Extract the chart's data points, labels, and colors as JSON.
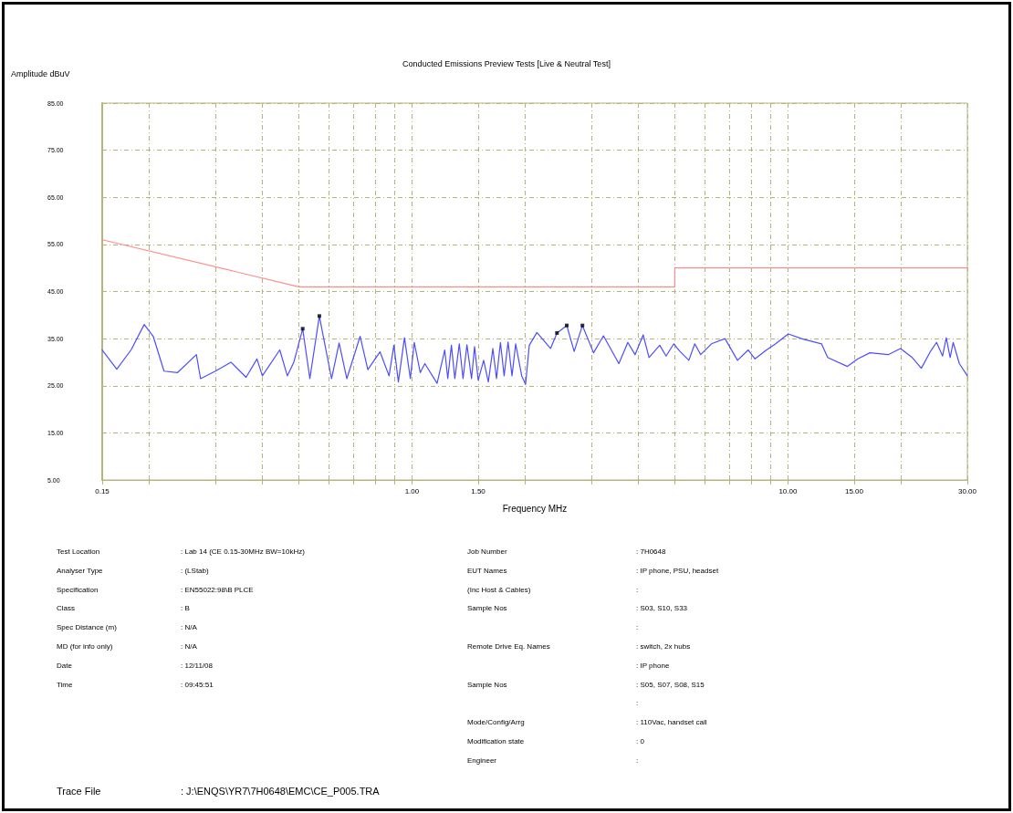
{
  "chart_data": {
    "type": "line",
    "title": "Conducted Emissions Preview Tests [Live & Neutral Test]",
    "xlabel": "Frequency MHz",
    "ylabel": "Amplitude dBuV",
    "log": "x",
    "grid": true,
    "xlim": [
      0.15,
      30
    ],
    "xticks": [
      {
        "value": 0.15,
        "label": "0.15"
      },
      {
        "value": 0.2,
        "label": null
      },
      {
        "value": 0.3,
        "label": null
      },
      {
        "value": 0.4,
        "label": null
      },
      {
        "value": 0.5,
        "label": null
      },
      {
        "value": 0.6,
        "label": null
      },
      {
        "value": 0.7,
        "label": null
      },
      {
        "value": 0.8,
        "label": null
      },
      {
        "value": 0.9,
        "label": null
      },
      {
        "value": 1,
        "label": "1.00"
      },
      {
        "value": 1.5,
        "label": "1.50"
      },
      {
        "value": 2,
        "label": null
      },
      {
        "value": 3,
        "label": null
      },
      {
        "value": 4,
        "label": null
      },
      {
        "value": 5,
        "label": null
      },
      {
        "value": 6,
        "label": null
      },
      {
        "value": 7,
        "label": null
      },
      {
        "value": 8,
        "label": null
      },
      {
        "value": 9,
        "label": null
      },
      {
        "value": 10,
        "label": "10.00"
      },
      {
        "value": 15,
        "label": "15.00"
      },
      {
        "value": 20,
        "label": null
      },
      {
        "value": 30,
        "label": "30.00"
      }
    ],
    "ylim": [
      5,
      85
    ],
    "yticks": [
      {
        "value": 5,
        "label": "5.00"
      },
      {
        "value": 15,
        "label": "15.00"
      },
      {
        "value": 25,
        "label": "25.00"
      },
      {
        "value": 35,
        "label": "35.00"
      },
      {
        "value": 45,
        "label": "45.00"
      },
      {
        "value": 55,
        "label": "55.00"
      },
      {
        "value": 65,
        "label": "65.00"
      },
      {
        "value": 75,
        "label": "75.00"
      },
      {
        "value": 85,
        "label": "85.00"
      }
    ],
    "series": [
      {
        "type": "line",
        "color": "#ff8c8c",
        "marker": "none",
        "line_style": "solid",
        "x": [
          0.15,
          0.5,
          5,
          5,
          30
        ],
        "values": [
          56,
          46,
          46,
          50,
          50
        ]
      },
      {
        "type": "line",
        "color": "#4d4dff",
        "marker": "none",
        "line_style": "solid",
        "x": [
          0.15,
          0.164,
          0.179,
          0.194,
          0.205,
          0.219,
          0.238,
          0.267,
          0.274,
          0.3,
          0.33,
          0.362,
          0.387,
          0.4,
          0.445,
          0.466,
          0.485,
          0.512,
          0.535,
          0.567,
          0.611,
          0.64,
          0.671,
          0.728,
          0.763,
          0.822,
          0.869,
          0.895,
          0.92,
          0.955,
          0.99,
          1.014,
          1.052,
          1.082,
          1.166,
          1.222,
          1.245,
          1.273,
          1.3,
          1.336,
          1.367,
          1.4,
          1.44,
          1.467,
          1.5,
          1.551,
          1.596,
          1.641,
          1.678,
          1.719,
          1.758,
          1.801,
          1.845,
          1.887,
          1.958,
          2.005,
          2.051,
          2.149,
          2.336,
          2.43,
          2.58,
          2.7,
          2.84,
          3.04,
          3.23,
          3.55,
          3.75,
          3.92,
          4.12,
          4.27,
          4.56,
          4.74,
          4.97,
          5.16,
          5.45,
          5.65,
          5.86,
          6.26,
          6.8,
          7.34,
          7.84,
          8.17,
          8.77,
          9.27,
          10.02,
          10.96,
          12.28,
          12.75,
          14.39,
          15.34,
          16.52,
          18.47,
          19.92,
          21.4,
          22.63,
          23.93,
          24.84,
          25.78,
          26.36,
          27,
          27.5,
          28.56,
          30
        ],
        "values": [
          32.6,
          28.5,
          32.6,
          38,
          35.5,
          28.1,
          27.8,
          31.6,
          26.5,
          28.1,
          30,
          26.8,
          30.7,
          27.1,
          32.6,
          27.1,
          30,
          37.1,
          26.5,
          39.8,
          26.5,
          34.1,
          26.5,
          35.5,
          28.4,
          32.2,
          27.1,
          33.6,
          25.8,
          35.2,
          26.5,
          34.2,
          27.8,
          29.7,
          25.5,
          32.6,
          26.5,
          33.6,
          26.5,
          33.9,
          26.5,
          33.7,
          26.5,
          33.3,
          26.2,
          30.4,
          25.8,
          32.9,
          26.5,
          34.2,
          27.1,
          34.3,
          27.1,
          33.9,
          27.1,
          25.3,
          33.6,
          36.3,
          32.9,
          36.2,
          37.8,
          32.3,
          37.8,
          32,
          35.6,
          29.7,
          34.2,
          31.6,
          35.8,
          31,
          33.6,
          31.3,
          33.9,
          32.3,
          30.4,
          33.9,
          31.6,
          33.9,
          35,
          30.4,
          32.6,
          30.7,
          32.6,
          33.9,
          36,
          34.9,
          33.9,
          31,
          29.1,
          30.7,
          32,
          31.6,
          32.9,
          31,
          28.7,
          32.3,
          34.2,
          31.3,
          35.2,
          31,
          34.2,
          29.7,
          27.1
        ]
      },
      {
        "type": "scatter",
        "color": "#000000",
        "marker": "square",
        "x": [
          0.512,
          0.567,
          2.43,
          2.58,
          2.84
        ],
        "values": [
          37.1,
          39.8,
          36.2,
          37.8,
          37.8
        ]
      }
    ],
    "annotations": [
      "Test Location",
      ": Lab 14 (CE 0.15-30MHz BW=10kHz)",
      "Analyser Type",
      ": (LStab)",
      "Specification",
      ": EN55022:98\\B PLCE",
      "Class",
      ": B",
      "Spec Distance (m)",
      ": N/A",
      "MD (for info only)",
      ": N/A",
      "Date",
      ": 12/11/08",
      "Time",
      ": 09:45:51",
      "Job Number",
      ": 7H0648",
      "EUT Names",
      ": IP phone, PSU, headset",
      "(Inc Host & Cables)",
      ":",
      "Sample Nos",
      ": S03, S10, S33",
      ":",
      "Remote Drive Eq. Names",
      ": switch, 2x hubs",
      ": IP phone",
      "Sample Nos",
      ": S05, S07, S08, S15",
      ":",
      "Mode/Config/Arrg",
      ": 110Vac, handset call",
      "Modification state",
      ": 0",
      "Engineer",
      ":",
      "Trace File",
      ": J:\\ENQS\\YR7\\7H0648\\EMC\\CE_P005.TRA"
    ]
  }
}
